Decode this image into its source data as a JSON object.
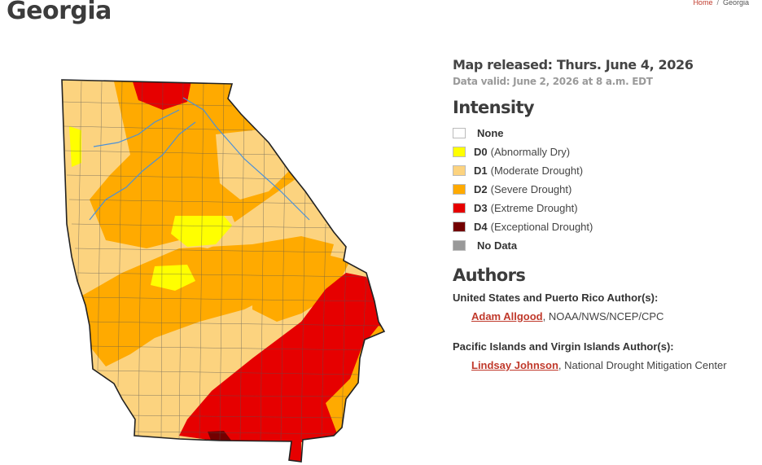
{
  "page": {
    "title": "Georgia"
  },
  "breadcrumb": {
    "home": "Home",
    "separator": "/",
    "current": "Georgia"
  },
  "map_info": {
    "released": "Map released: Thurs. June 4, 2026",
    "valid": "Data valid: June 2, 2026 at 8 a.m. EDT"
  },
  "intensity": {
    "heading": "Intensity",
    "items": [
      {
        "code": "",
        "label": "None",
        "color": "#ffffff"
      },
      {
        "code": "D0",
        "label": "(Abnormally Dry)",
        "color": "#ffff00"
      },
      {
        "code": "D1",
        "label": "(Moderate Drought)",
        "color": "#fcd37f"
      },
      {
        "code": "D2",
        "label": "(Severe Drought)",
        "color": "#ffaa00"
      },
      {
        "code": "D3",
        "label": "(Extreme Drought)",
        "color": "#e60000"
      },
      {
        "code": "D4",
        "label": "(Exceptional Drought)",
        "color": "#730000"
      },
      {
        "code": "",
        "label": "No Data",
        "color": "#999999"
      }
    ]
  },
  "authors": {
    "heading": "Authors",
    "us_label": "United States and Puerto Rico Author(s):",
    "us_name": "Adam Allgood",
    "us_org": ", NOAA/NWS/NCEP/CPC",
    "pacific_label": "Pacific Islands and Virgin Islands Author(s):",
    "pacific_name": "Lindsay Johnson",
    "pacific_org": ", National Drought Mitigation Center"
  },
  "map": {
    "region": "Georgia",
    "colors": {
      "d0": "#ffff00",
      "d1": "#fcd37f",
      "d2": "#ffaa00",
      "d3": "#e60000",
      "d4": "#730000",
      "water": "#4a90d9",
      "border": "#222222"
    }
  }
}
